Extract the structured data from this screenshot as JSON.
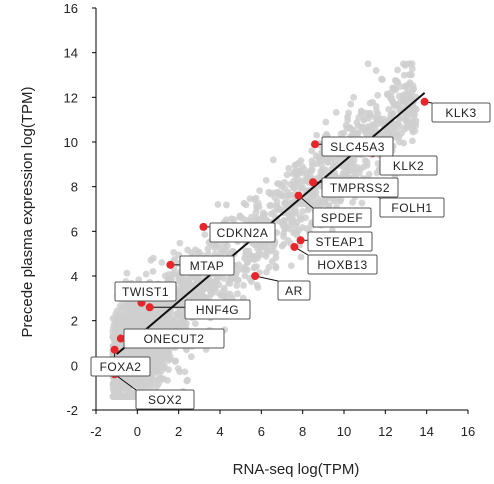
{
  "chart_data": {
    "type": "scatter",
    "title": "",
    "xlabel": "RNA-seq log(TPM)",
    "ylabel": "Precede plasma expression log(TPM)",
    "xlim": [
      -2,
      16
    ],
    "ylim": [
      -2,
      16
    ],
    "xticks": [
      -2,
      0,
      2,
      4,
      6,
      8,
      10,
      12,
      14,
      16
    ],
    "yticks": [
      -2,
      0,
      2,
      4,
      6,
      8,
      10,
      12,
      14,
      16
    ],
    "grid": false,
    "legend": "none",
    "fit_line": {
      "x": [
        -1.0,
        13.9
      ],
      "y": [
        0.5,
        12.2
      ]
    },
    "highlighted_genes": [
      {
        "name": "KLK3",
        "x": 13.9,
        "y": 11.8
      },
      {
        "name": "SLC45A3",
        "x": 8.6,
        "y": 9.9
      },
      {
        "name": "KLK2",
        "x": 11.4,
        "y": 9.5
      },
      {
        "name": "TMPRSS2",
        "x": 8.5,
        "y": 8.2
      },
      {
        "name": "FOLH1",
        "x": 10.8,
        "y": 7.9
      },
      {
        "name": "SPDEF",
        "x": 7.8,
        "y": 7.6
      },
      {
        "name": "CDKN2A",
        "x": 3.2,
        "y": 6.2
      },
      {
        "name": "STEAP1",
        "x": 7.9,
        "y": 5.6
      },
      {
        "name": "HOXB13",
        "x": 7.6,
        "y": 5.3
      },
      {
        "name": "MTAP",
        "x": 1.6,
        "y": 4.5
      },
      {
        "name": "AR",
        "x": 5.7,
        "y": 4.0
      },
      {
        "name": "TWIST1",
        "x": 0.2,
        "y": 2.8
      },
      {
        "name": "HNF4G",
        "x": 0.6,
        "y": 2.6
      },
      {
        "name": "ONECUT2",
        "x": -0.8,
        "y": 1.2
      },
      {
        "name": "FOXA2",
        "x": -1.1,
        "y": 0.7
      },
      {
        "name": "SOX2",
        "x": -1.1,
        "y": -0.4
      }
    ],
    "colors": {
      "background_points": "#cfcfcf",
      "highlight": "#e8262a",
      "fit_line": "#111111",
      "label_border": "#555555"
    }
  }
}
